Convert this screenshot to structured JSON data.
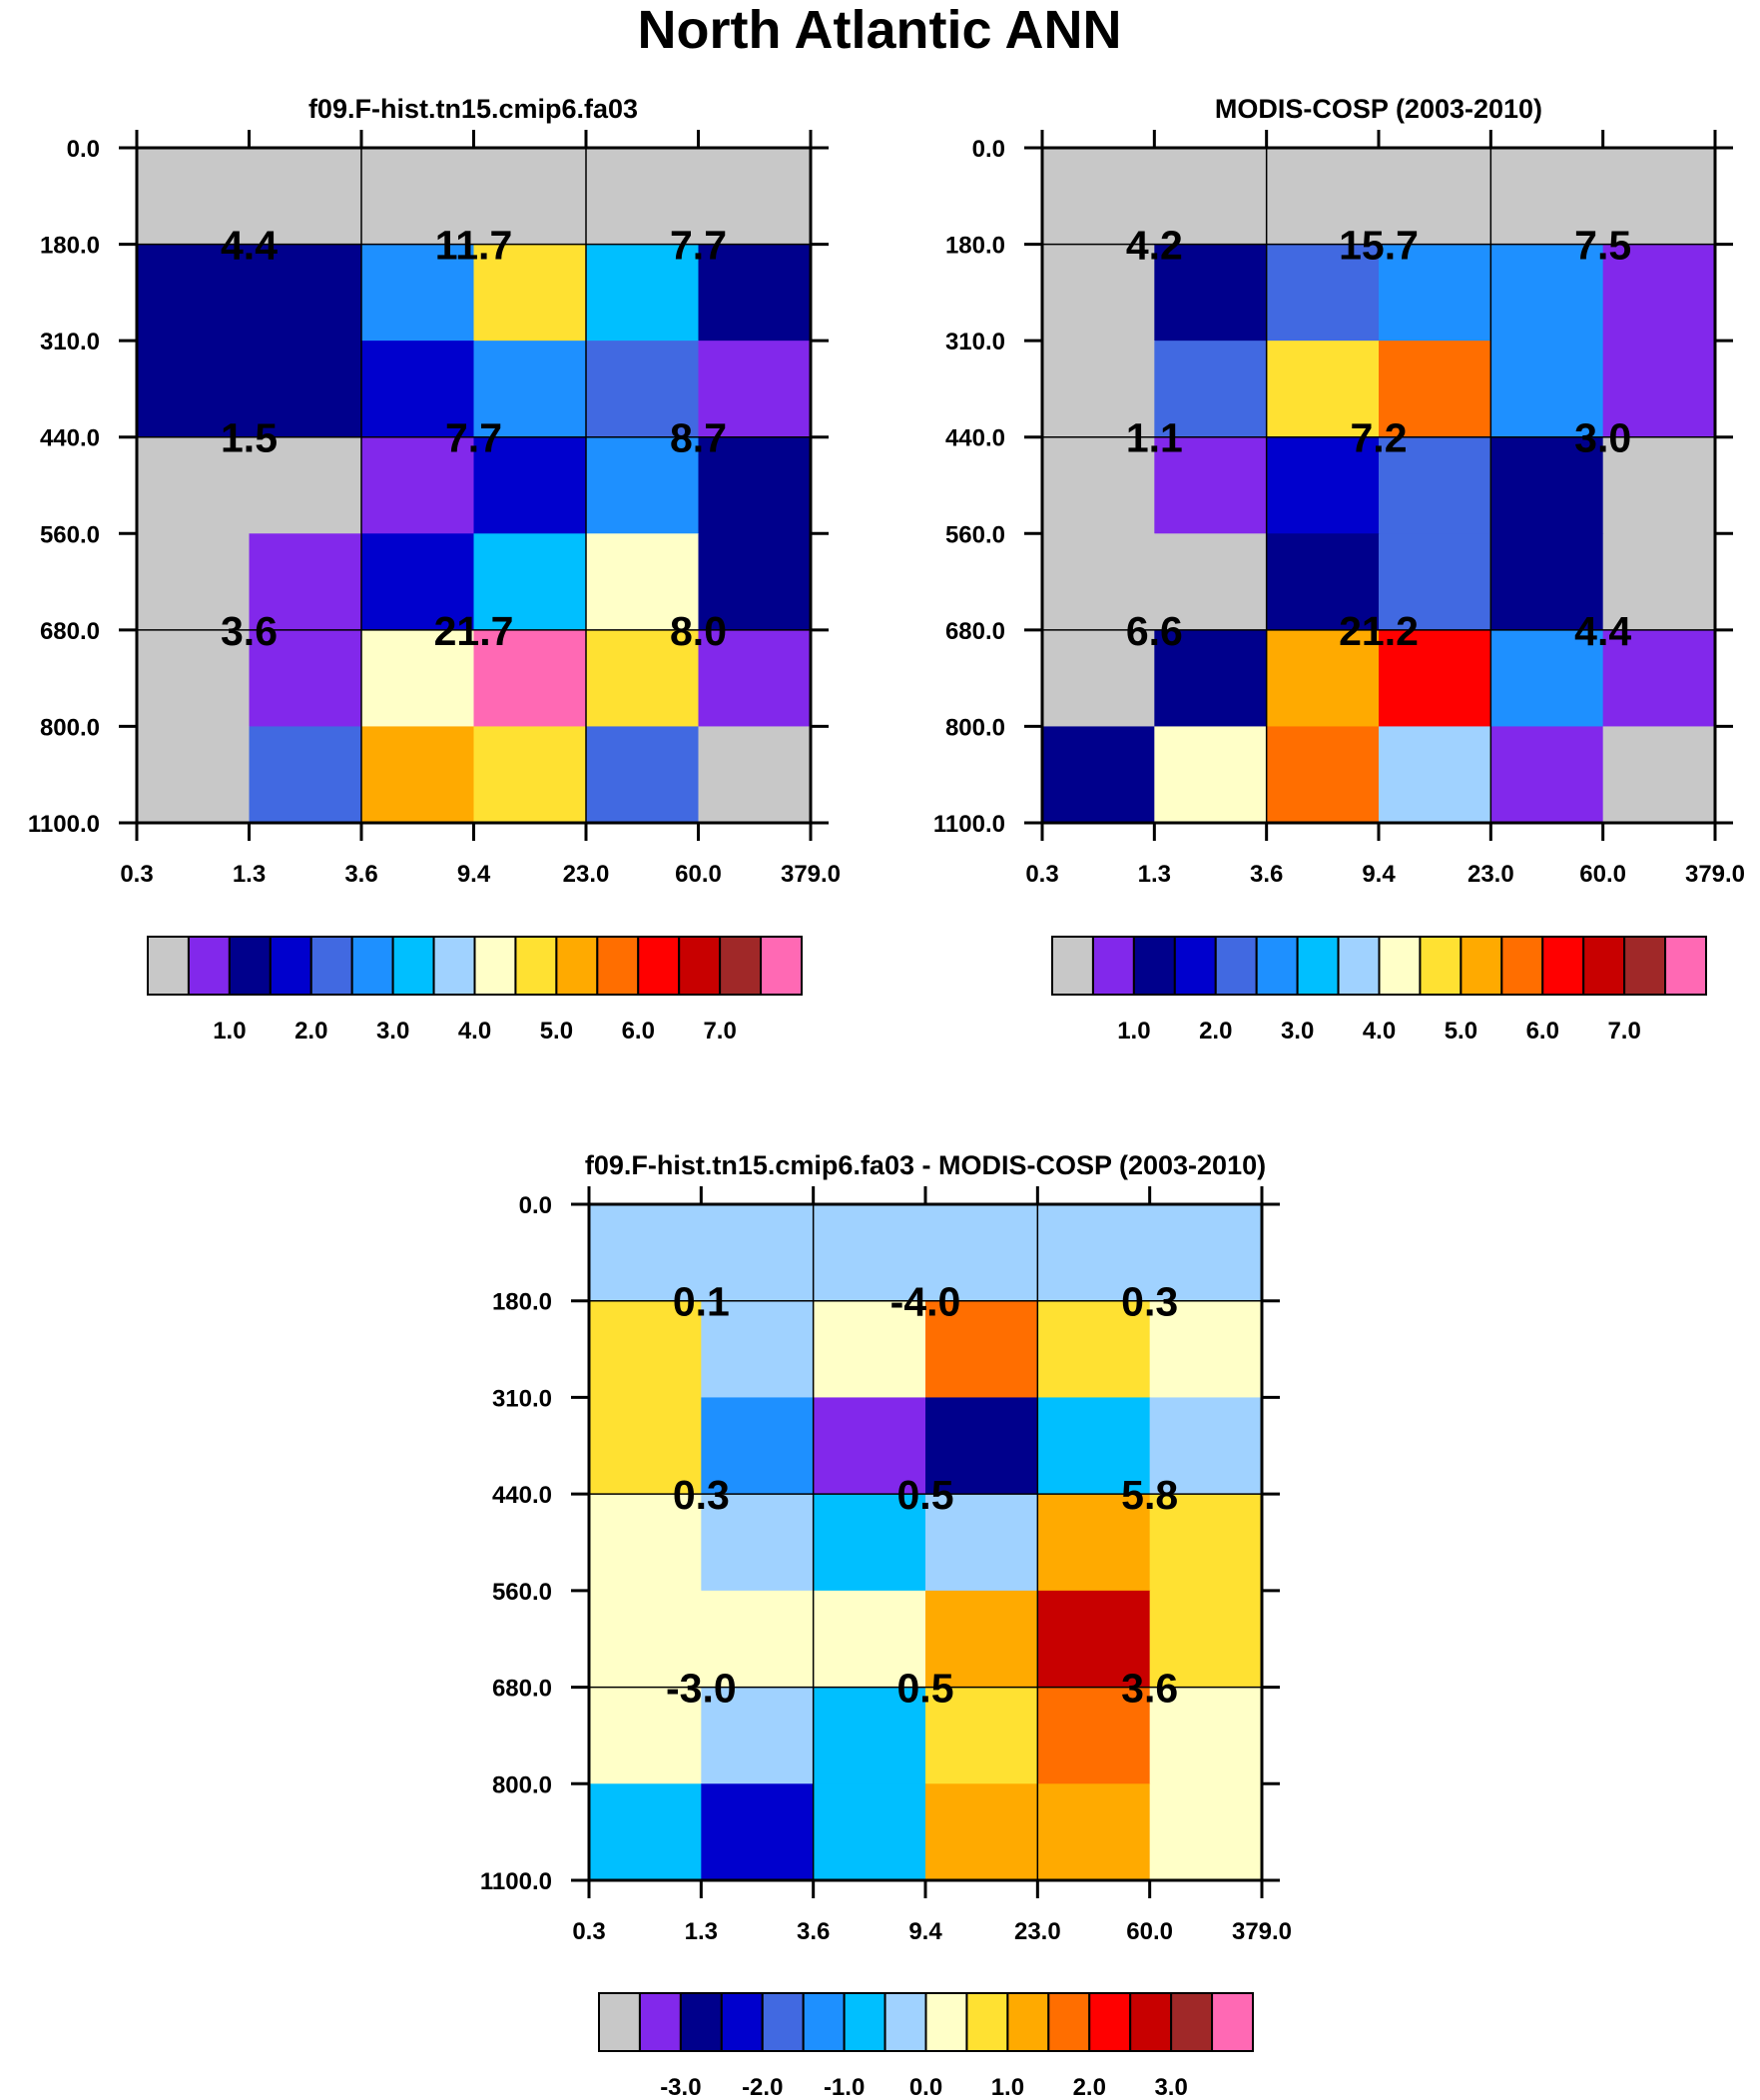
{
  "figure": {
    "title": "North Atlantic ANN"
  },
  "chart_data": [
    {
      "id": "model",
      "type": "heatmap",
      "title": "f09.F-hist.tn15.cmip6.fa03",
      "xlabel": "",
      "ylabel": "",
      "x_ticks": [
        "0.3",
        "1.3",
        "3.6",
        "9.4",
        "23.0",
        "60.0",
        "379.0"
      ],
      "y_ticks": [
        "0.0",
        "180.0",
        "310.0",
        "440.0",
        "560.0",
        "680.0",
        "800.0",
        "1100.0"
      ],
      "cells": [
        [
          0,
          0,
          0,
          0,
          0,
          0
        ],
        [
          2,
          2,
          5,
          9,
          6,
          2
        ],
        [
          2,
          2,
          3,
          5,
          4,
          1
        ],
        [
          0,
          0,
          1,
          3,
          5,
          2
        ],
        [
          0,
          1,
          3,
          6,
          8,
          2
        ],
        [
          0,
          1,
          8,
          15,
          9,
          1
        ],
        [
          0,
          4,
          10,
          9,
          4,
          0
        ]
      ],
      "sums": [
        {
          "row": 1,
          "col": 0,
          "label": "4.4"
        },
        {
          "row": 1,
          "col": 1,
          "label": "11.7"
        },
        {
          "row": 1,
          "col": 2,
          "label": "7.7"
        },
        {
          "row": 2,
          "col": 0,
          "label": "1.5"
        },
        {
          "row": 2,
          "col": 1,
          "label": "7.7"
        },
        {
          "row": 2,
          "col": 2,
          "label": "8.7"
        },
        {
          "row": 3,
          "col": 0,
          "label": "3.6"
        },
        {
          "row": 3,
          "col": 1,
          "label": "21.7"
        },
        {
          "row": 3,
          "col": 2,
          "label": "8.0"
        }
      ],
      "colorbar": {
        "colors": [
          "#c8c8c8",
          "#8228eb",
          "#00008c",
          "#0000cd",
          "#4169e1",
          "#1e90ff",
          "#00bfff",
          "#a0d2ff",
          "#ffffc8",
          "#ffe132",
          "#ffaa00",
          "#ff6e00",
          "#ff0000",
          "#c80000",
          "#a02828",
          "#ff69b4"
        ],
        "labels": [
          "1.0",
          "2.0",
          "3.0",
          "4.0",
          "5.0",
          "6.0",
          "7.0"
        ]
      }
    },
    {
      "id": "obs",
      "type": "heatmap",
      "title": "MODIS-COSP (2003-2010)",
      "xlabel": "",
      "ylabel": "",
      "x_ticks": [
        "0.3",
        "1.3",
        "3.6",
        "9.4",
        "23.0",
        "60.0",
        "379.0"
      ],
      "y_ticks": [
        "0.0",
        "180.0",
        "310.0",
        "440.0",
        "560.0",
        "680.0",
        "800.0",
        "1100.0"
      ],
      "cells": [
        [
          0,
          0,
          0,
          0,
          0,
          0
        ],
        [
          0,
          2,
          4,
          5,
          5,
          1
        ],
        [
          0,
          4,
          9,
          11,
          5,
          1
        ],
        [
          0,
          1,
          3,
          4,
          2,
          0
        ],
        [
          0,
          0,
          2,
          4,
          2,
          0
        ],
        [
          0,
          2,
          10,
          12,
          5,
          1
        ],
        [
          2,
          8,
          11,
          7,
          1,
          0
        ]
      ],
      "sums": [
        {
          "row": 1,
          "col": 0,
          "label": "4.2"
        },
        {
          "row": 1,
          "col": 1,
          "label": "15.7"
        },
        {
          "row": 1,
          "col": 2,
          "label": "7.5"
        },
        {
          "row": 2,
          "col": 0,
          "label": "1.1"
        },
        {
          "row": 2,
          "col": 1,
          "label": "7.2"
        },
        {
          "row": 2,
          "col": 2,
          "label": "3.0"
        },
        {
          "row": 3,
          "col": 0,
          "label": "6.6"
        },
        {
          "row": 3,
          "col": 1,
          "label": "21.2"
        },
        {
          "row": 3,
          "col": 2,
          "label": "4.4"
        }
      ],
      "colorbar": {
        "colors": [
          "#c8c8c8",
          "#8228eb",
          "#00008c",
          "#0000cd",
          "#4169e1",
          "#1e90ff",
          "#00bfff",
          "#a0d2ff",
          "#ffffc8",
          "#ffe132",
          "#ffaa00",
          "#ff6e00",
          "#ff0000",
          "#c80000",
          "#a02828",
          "#ff69b4"
        ],
        "labels": [
          "1.0",
          "2.0",
          "3.0",
          "4.0",
          "5.0",
          "6.0",
          "7.0"
        ]
      }
    },
    {
      "id": "diff",
      "type": "heatmap",
      "title": "f09.F-hist.tn15.cmip6.fa03 - MODIS-COSP (2003-2010)",
      "xlabel": "",
      "ylabel": "",
      "x_ticks": [
        "0.3",
        "1.3",
        "3.6",
        "9.4",
        "23.0",
        "60.0",
        "379.0"
      ],
      "y_ticks": [
        "0.0",
        "180.0",
        "310.0",
        "440.0",
        "560.0",
        "680.0",
        "800.0",
        "1100.0"
      ],
      "cells": [
        [
          7,
          7,
          7,
          7,
          7,
          7
        ],
        [
          9,
          7,
          8,
          11,
          9,
          8
        ],
        [
          9,
          5,
          1,
          2,
          6,
          7
        ],
        [
          8,
          7,
          6,
          7,
          10,
          9
        ],
        [
          8,
          8,
          8,
          10,
          13,
          9
        ],
        [
          8,
          7,
          6,
          9,
          11,
          8
        ],
        [
          6,
          3,
          6,
          10,
          10,
          8
        ]
      ],
      "sums": [
        {
          "row": 1,
          "col": 0,
          "label": "0.1"
        },
        {
          "row": 1,
          "col": 1,
          "label": "-4.0"
        },
        {
          "row": 1,
          "col": 2,
          "label": "0.3"
        },
        {
          "row": 2,
          "col": 0,
          "label": "0.3"
        },
        {
          "row": 2,
          "col": 1,
          "label": "0.5"
        },
        {
          "row": 2,
          "col": 2,
          "label": "5.8"
        },
        {
          "row": 3,
          "col": 0,
          "label": "-3.0"
        },
        {
          "row": 3,
          "col": 1,
          "label": "0.5"
        },
        {
          "row": 3,
          "col": 2,
          "label": "3.6"
        }
      ],
      "colorbar": {
        "colors": [
          "#c8c8c8",
          "#8228eb",
          "#00008c",
          "#0000cd",
          "#4169e1",
          "#1e90ff",
          "#00bfff",
          "#a0d2ff",
          "#ffffc8",
          "#ffe132",
          "#ffaa00",
          "#ff6e00",
          "#ff0000",
          "#c80000",
          "#a02828",
          "#ff69b4"
        ],
        "labels": [
          "-3.0",
          "-2.0",
          "-1.0",
          "0.0",
          "1.0",
          "2.0",
          "3.0"
        ]
      }
    }
  ]
}
